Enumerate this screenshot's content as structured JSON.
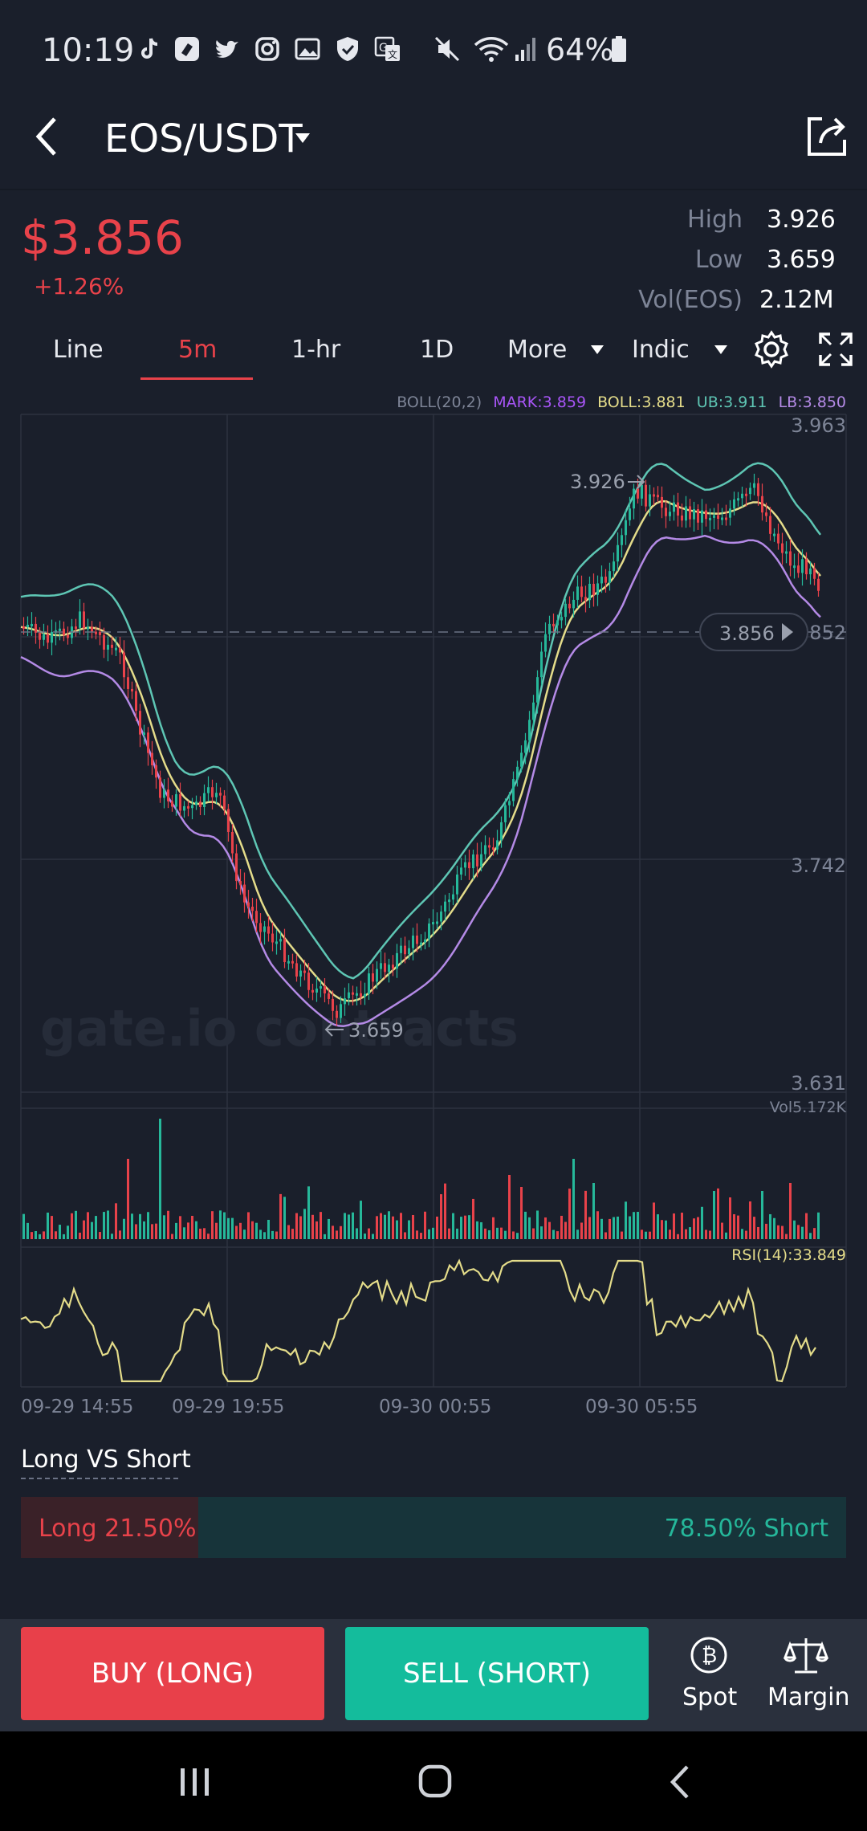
{
  "status_bar": {
    "time": "10:19",
    "battery": "64%"
  },
  "header": {
    "pair": "EOS/USDT"
  },
  "price": {
    "last": "$3.856",
    "change": "+1.26%"
  },
  "stats": [
    {
      "label": "High",
      "value": "3.926"
    },
    {
      "label": "Low",
      "value": "3.659"
    },
    {
      "label": "Vol(EOS)",
      "value": "2.12M"
    }
  ],
  "tabs": {
    "line": "Line",
    "m5": "5m",
    "hr1": "1-hr",
    "d1": "1D",
    "more": "More",
    "indic": "Indic"
  },
  "chart": {
    "legend": {
      "boll": "BOLL(20,2)",
      "mark": "MARK:3.859",
      "mid": "BOLL:3.881",
      "ub": "UB:3.911",
      "lb": "LB:3.850"
    },
    "y_labels": {
      "top": "3.963",
      "mid": "3.742",
      "bottom": "3.631",
      "right_cut": "852"
    },
    "current_price_tag": "3.856",
    "high_marker": "3.926",
    "low_marker": "3.659",
    "watermark": "gate.io contracts",
    "vol_label": "Vol5.172K",
    "rsi_label": "RSI(14):33.849",
    "x_labels": [
      "09-29 14:55",
      "09-29 19:55",
      "09-30 00:55",
      "09-30 05:55"
    ],
    "colors": {
      "up": "#26b89a",
      "down": "#e8424a",
      "boll_mid": "#e4dc8a",
      "boll_ub": "#5ec6b4",
      "boll_lb": "#b48ae6",
      "rsi": "#e4dc8a"
    }
  },
  "long_short": {
    "title": "Long VS Short",
    "long_text": "Long 21.50%",
    "short_text": "78.50% Short",
    "long_pct": 21.5
  },
  "actions": {
    "buy": "BUY (LONG)",
    "sell": "SELL (SHORT)",
    "spot": "Spot",
    "margin": "Margin"
  }
}
